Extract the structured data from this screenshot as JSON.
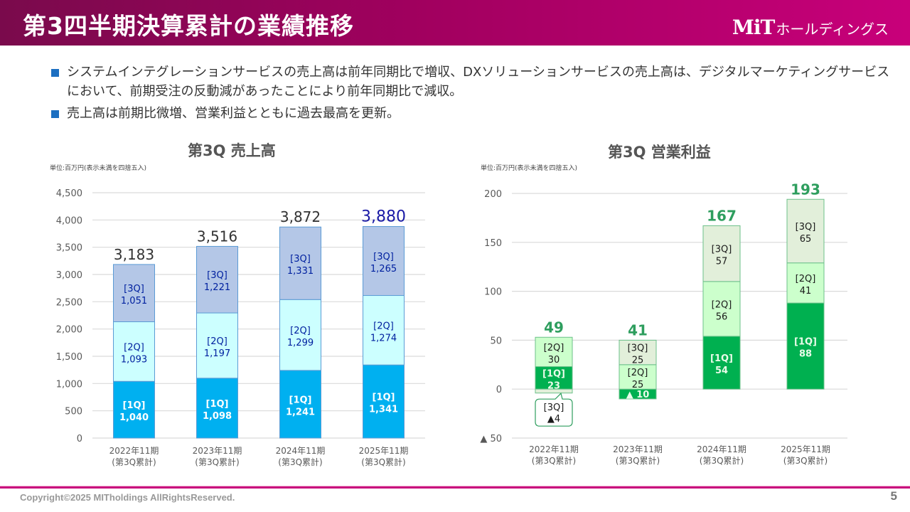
{
  "header": {
    "title": "第3四半期決算累計の業績推移",
    "logo_mark": "MiT",
    "logo_text": "ホールディングス"
  },
  "bullets": [
    "システムインテグレーションサービスの売上高は前年同期比で増収、DXソリューションサービスの売上高は、デジタルマーケティングサービスにおいて、前期受注の反動減があったことにより前年同期比で減収。",
    "売上高は前期比微増、営業利益とともに過去最高を更新。"
  ],
  "colors": {
    "header_start": "#7a0a4c",
    "header_end": "#c8007a",
    "bullet": "#1c6fc1",
    "sales_1q": "#00b0f0",
    "sales_2q": "#ccffff",
    "sales_3q": "#b4c7e7",
    "sales_label": "#00209f",
    "sales_total_latest": "#1a1aa6",
    "profit_1q": "#00b050",
    "profit_2q": "#ccffcc",
    "profit_3q": "#e2efda",
    "profit_total": "#2e9e5e"
  },
  "chart_data": [
    {
      "type": "bar",
      "stacked": true,
      "title": "第3Q 売上高",
      "unit_note": "単位:百万円(表示未満を四捨五入)",
      "categories": [
        "2022年11期\n(第3Q累計)",
        "2023年11期\n(第3Q累計)",
        "2024年11期\n(第3Q累計)",
        "2025年11期\n(第3Q累計)"
      ],
      "category_lines": [
        [
          "2022年11期",
          "(第3Q累計)"
        ],
        [
          "2023年11期",
          "(第3Q累計)"
        ],
        [
          "2024年11期",
          "(第3Q累計)"
        ],
        [
          "2025年11期",
          "(第3Q累計)"
        ]
      ],
      "series": [
        {
          "name": "[1Q]",
          "values": [
            1040,
            1098,
            1241,
            1341
          ],
          "labels": [
            "1,040",
            "1,098",
            "1,241",
            "1,341"
          ]
        },
        {
          "name": "[2Q]",
          "values": [
            1093,
            1197,
            1299,
            1274
          ],
          "labels": [
            "1,093",
            "1,197",
            "1,299",
            "1,274"
          ]
        },
        {
          "name": "[3Q]",
          "values": [
            1051,
            1221,
            1331,
            1265
          ],
          "labels": [
            "1,051",
            "1,221",
            "1,331",
            "1,265"
          ]
        }
      ],
      "totals": [
        3183,
        3516,
        3872,
        3880
      ],
      "total_labels": [
        "3,183",
        "3,516",
        "3,872",
        "3,880"
      ],
      "ylim": [
        0,
        4500
      ],
      "yticks": [
        0,
        500,
        1000,
        1500,
        2000,
        2500,
        3000,
        3500,
        4000,
        4500
      ],
      "ytick_labels": [
        "0",
        "500",
        "1,000",
        "1,500",
        "2,000",
        "2,500",
        "3,000",
        "3,500",
        "4,000",
        "4,500"
      ],
      "grid": true,
      "xlabel": "",
      "ylabel": ""
    },
    {
      "type": "bar",
      "stacked": true,
      "title": "第3Q 営業利益",
      "unit_note": "単位:百万円(表示未満を四捨五入)",
      "categories": [
        "2022年11期\n(第3Q累計)",
        "2023年11期\n(第3Q累計)",
        "2024年11期\n(第3Q累計)",
        "2025年11期\n(第3Q累計)"
      ],
      "category_lines": [
        [
          "2022年11期",
          "(第3Q累計)"
        ],
        [
          "2023年11期",
          "(第3Q累計)"
        ],
        [
          "2024年11期",
          "(第3Q累計)"
        ],
        [
          "2025年11期",
          "(第3Q累計)"
        ]
      ],
      "series": [
        {
          "name": "[1Q]",
          "values": [
            23,
            -10,
            54,
            88
          ],
          "labels": [
            "23",
            "▲ 10",
            "54",
            "88"
          ]
        },
        {
          "name": "[2Q]",
          "values": [
            30,
            25,
            56,
            41
          ],
          "labels": [
            "30",
            "25",
            "56",
            "41"
          ]
        },
        {
          "name": "[3Q]",
          "values": [
            -4,
            25,
            57,
            65
          ],
          "labels": [
            "▲4",
            "25",
            "57",
            "65"
          ]
        }
      ],
      "totals": [
        49,
        41,
        167,
        193
      ],
      "total_labels": [
        "49",
        "41",
        "167",
        "193"
      ],
      "ylim": [
        -50,
        200
      ],
      "yticks": [
        -50,
        0,
        50,
        100,
        150,
        200
      ],
      "ytick_labels": [
        "▲ 50",
        "0",
        "50",
        "100",
        "150",
        "200"
      ],
      "grid": true,
      "xlabel": "",
      "ylabel": "",
      "callout": {
        "category_index": 0,
        "series": "[3Q]",
        "text_lines": [
          "[3Q]",
          "▲4"
        ]
      }
    }
  ],
  "footer": {
    "copyright": "Copyright©2025 MITholdings AllRightsReserved.",
    "page_number": "5"
  }
}
